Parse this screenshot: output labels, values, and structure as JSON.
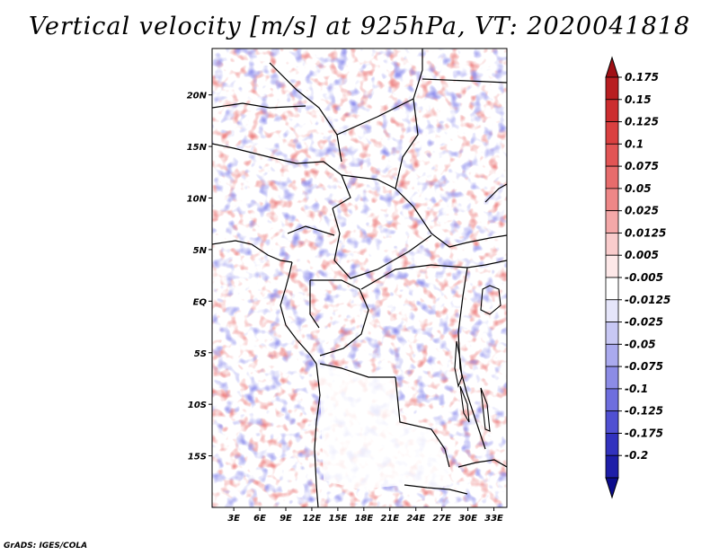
{
  "chart_data": {
    "type": "heatmap",
    "title": "Vertical velocity [m/s] at 925hPa, VT: 2020041818",
    "x_axis": {
      "ticks": [
        3,
        6,
        9,
        12,
        15,
        18,
        21,
        24,
        27,
        30,
        33
      ],
      "tick_labels": [
        "3E",
        "6E",
        "9E",
        "12E",
        "15E",
        "18E",
        "21E",
        "24E",
        "27E",
        "30E",
        "33E"
      ],
      "range": [
        0.5,
        34.5
      ]
    },
    "y_axis": {
      "ticks": [
        20,
        15,
        10,
        5,
        0,
        -5,
        -10,
        -15
      ],
      "tick_labels": [
        "20N",
        "15N",
        "10N",
        "5N",
        "EQ",
        "5S",
        "10S",
        "15S"
      ],
      "range": [
        -20,
        24.5
      ]
    },
    "colorbar": {
      "labels": [
        "0.175",
        "0.15",
        "0.125",
        "0.1",
        "0.075",
        "0.05",
        "0.025",
        "0.0125",
        "0.005",
        "-0.005",
        "-0.0125",
        "-0.025",
        "-0.05",
        "-0.075",
        "-0.1",
        "-0.125",
        "-0.175",
        "-0.2"
      ],
      "colors": [
        "#a01015",
        "#b81e21",
        "#cc2d2f",
        "#da4040",
        "#e25555",
        "#e76c6c",
        "#ee8787",
        "#f4a8a8",
        "#f9cccc",
        "#fde8e8",
        "#ffffff",
        "#e6e6fa",
        "#c8c8f4",
        "#aaaaee",
        "#8c8ce6",
        "#6e6ede",
        "#5050d2",
        "#3232be",
        "#1e1ea8",
        "#0c0c8c"
      ],
      "extend": "both"
    },
    "credit": "GrADS: IGES/COLA"
  }
}
